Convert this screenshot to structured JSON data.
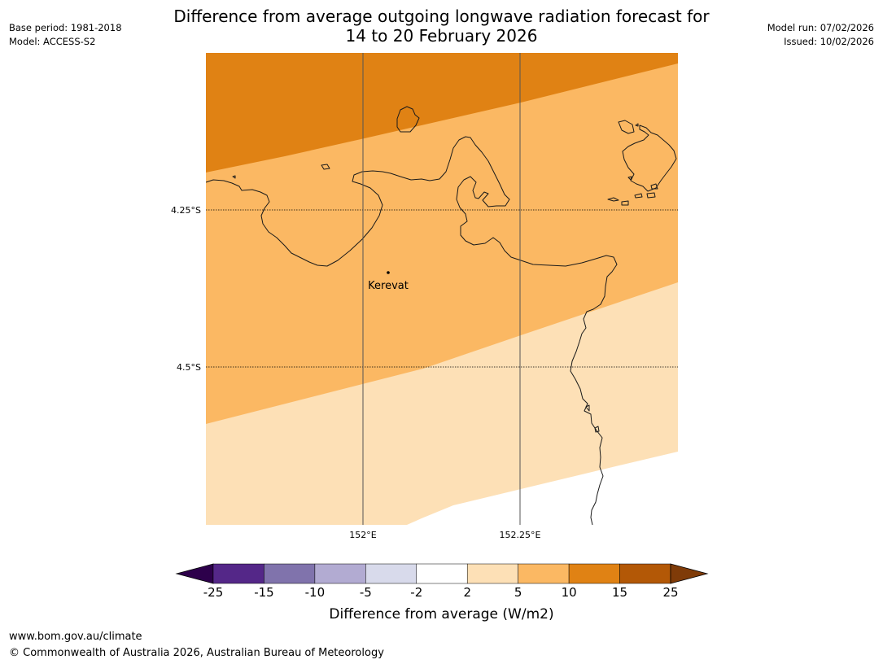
{
  "title": {
    "line1": "Difference from average outgoing longwave radiation forecast for",
    "line2": "14 to 20 February 2026"
  },
  "meta_left": {
    "base_period": "Base period: 1981-2018",
    "model": "Model: ACCESS-S2"
  },
  "meta_right": {
    "model_run": "Model run: 07/02/2026",
    "issued": "Issued: 10/02/2026"
  },
  "map": {
    "lat_labels": [
      "4.25°S",
      "4.5°S"
    ],
    "lon_labels": [
      "152°E",
      "152.25°E"
    ],
    "place": "Kerevat",
    "anomaly_bands": [
      {
        "range": "10 to 15",
        "color": "#e08214"
      },
      {
        "range": "5 to 10",
        "color": "#fbb863"
      },
      {
        "range": "2 to 5",
        "color": "#fde0b6"
      },
      {
        "range": "-2 to 2",
        "color": "#ffffff"
      }
    ]
  },
  "colorbar": {
    "ticks": [
      "-25",
      "-15",
      "-10",
      "-5",
      "-2",
      "2",
      "5",
      "10",
      "15",
      "25"
    ],
    "colors": [
      "#542788",
      "#8073ac",
      "#b2abd2",
      "#d8daeb",
      "#ffffff",
      "#fde0b6",
      "#fbb863",
      "#e08214",
      "#b35806"
    ],
    "under_color": "#2d004b",
    "over_color": "#7f3b08",
    "label": "Difference from average (W/m2)"
  },
  "footer": {
    "url": "www.bom.gov.au/climate",
    "copyright": "© Commonwealth of Australia 2026, Australian Bureau of Meteorology"
  }
}
